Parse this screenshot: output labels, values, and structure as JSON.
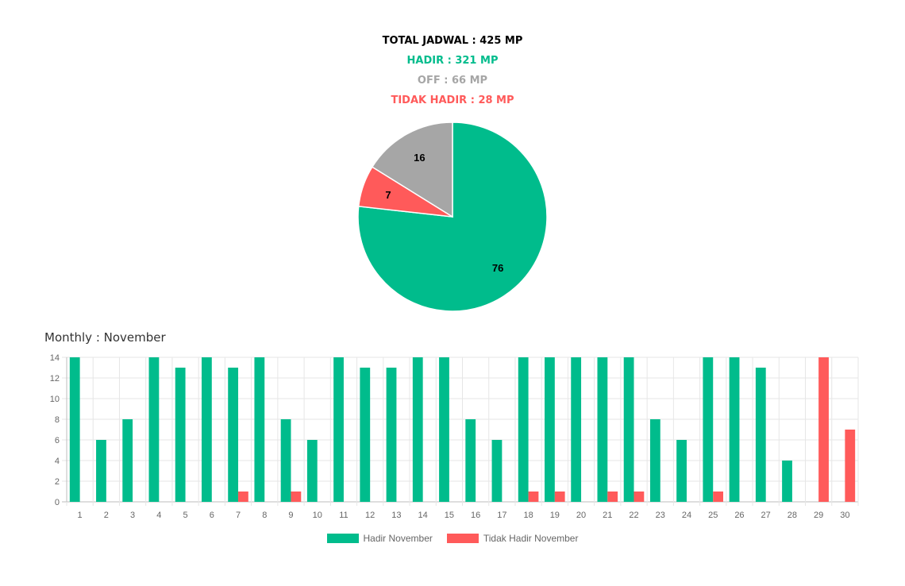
{
  "summary": {
    "total": "TOTAL JADWAL : 425 MP",
    "hadir": "HADIR : 321 MP",
    "off": "OFF : 66 MP",
    "tidak_hadir": "TIDAK HADIR : 28 MP"
  },
  "colors": {
    "total": "#000000",
    "hadir": "#00bc8c",
    "off": "#a6a6a6",
    "tidak_hadir": "#ff5a5a"
  },
  "monthly_title": "Monthly : November",
  "chart_data": [
    {
      "type": "pie",
      "labels": [
        "Hadir",
        "Tidak Hadir",
        "Off"
      ],
      "values": [
        76,
        7,
        16
      ],
      "colors": [
        "#00bc8c",
        "#ff5a5a",
        "#a6a6a6"
      ]
    },
    {
      "type": "bar",
      "title": "Monthly : November",
      "categories": [
        "1",
        "2",
        "3",
        "4",
        "5",
        "6",
        "7",
        "8",
        "9",
        "10",
        "11",
        "12",
        "13",
        "14",
        "15",
        "16",
        "17",
        "18",
        "19",
        "20",
        "21",
        "22",
        "23",
        "24",
        "25",
        "26",
        "27",
        "28",
        "29",
        "30"
      ],
      "series": [
        {
          "name": "Hadir November",
          "color": "#00bc8c",
          "values": [
            14,
            6,
            8,
            14,
            13,
            14,
            13,
            14,
            8,
            6,
            14,
            13,
            13,
            14,
            14,
            8,
            6,
            14,
            14,
            14,
            14,
            14,
            8,
            6,
            14,
            14,
            13,
            4,
            0,
            0
          ]
        },
        {
          "name": "Tidak Hadir November",
          "color": "#ff5a5a",
          "values": [
            0,
            0,
            0,
            0,
            0,
            0,
            1,
            0,
            1,
            0,
            0,
            0,
            0,
            0,
            0,
            0,
            0,
            1,
            1,
            0,
            1,
            1,
            0,
            0,
            1,
            0,
            0,
            0,
            14,
            7
          ]
        }
      ],
      "ylim": [
        0,
        14
      ],
      "yticks": [
        0,
        2,
        4,
        6,
        8,
        10,
        12,
        14
      ],
      "grid": true,
      "legend": "bottom"
    }
  ]
}
